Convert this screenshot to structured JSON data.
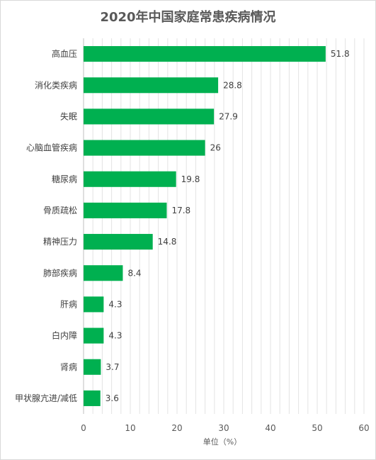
{
  "chart_data": {
    "type": "bar",
    "orientation": "horizontal",
    "title": "2020年中国家庭常患疾病情况",
    "xlabel": "单位（%）",
    "ylabel": "",
    "xlim": [
      0,
      60
    ],
    "xticks": [
      0,
      10,
      20,
      30,
      40,
      50,
      60
    ],
    "grid": true,
    "bar_color": "#00b050",
    "categories": [
      "高血压",
      "消化类疾病",
      "失眠",
      "心脑血管疾病",
      "糖尿病",
      "骨质疏松",
      "精神压力",
      "肺部疾病",
      "肝病",
      "白内障",
      "肾病",
      "甲状腺亢进/减低"
    ],
    "values": [
      51.8,
      28.8,
      27.9,
      26,
      19.8,
      17.8,
      14.8,
      8.4,
      4.3,
      4.3,
      3.7,
      3.6
    ]
  }
}
